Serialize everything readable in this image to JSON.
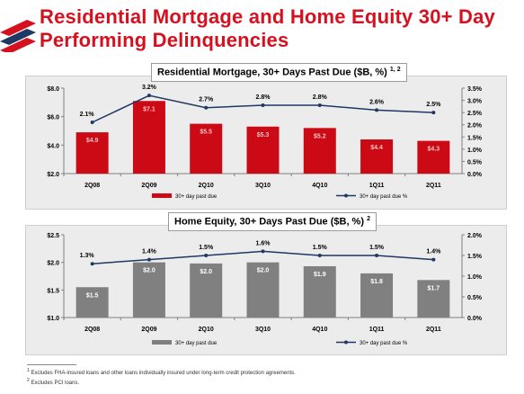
{
  "page": {
    "title": "Residential Mortgage and Home Equity 30+ Day Performing Delinquencies",
    "footnotes": [
      {
        "mark": "1",
        "text": "Excludes FHA-insured loans and other loans individually insured under long-term credit protection agreements."
      },
      {
        "mark": "2",
        "text": "Excludes PCI loans."
      }
    ],
    "colors": {
      "title": "#d6111f",
      "bar_top": "#cc0a16",
      "bar_bottom": "#8a9bb0",
      "line": "#1f3864"
    }
  },
  "chart_data": [
    {
      "type": "bar",
      "title": "Residential Mortgage, 30+ Days Past Due ($B, %)",
      "title_note": "1, 2",
      "categories": [
        "2Q08",
        "2Q09",
        "2Q10",
        "3Q10",
        "4Q10",
        "1Q11",
        "2Q11"
      ],
      "series": [
        {
          "name": "30+ day past due",
          "kind": "bar",
          "axis": "left",
          "color": "#cc0a16",
          "values": [
            4.9,
            7.1,
            5.5,
            5.3,
            5.2,
            4.4,
            4.3
          ],
          "labels": [
            "$4.9",
            "$7.1",
            "$5.5",
            "$5.3",
            "$5.2",
            "$4.4",
            "$4.3"
          ]
        },
        {
          "name": "30+ day past due %",
          "kind": "line",
          "axis": "right",
          "color": "#1f3864",
          "values": [
            2.1,
            3.2,
            2.7,
            2.8,
            2.8,
            2.6,
            2.5
          ],
          "labels": [
            "2.1%",
            "3.2%",
            "2.7%",
            "2.8%",
            "2.8%",
            "2.6%",
            "2.5%"
          ]
        }
      ],
      "ylim_left": [
        2.0,
        8.0
      ],
      "yticks_left": [
        "$2.0",
        "$4.0",
        "$6.0",
        "$8.0"
      ],
      "ylim_right": [
        0.0,
        3.5
      ],
      "yticks_right": [
        "0.0%",
        "0.5%",
        "1.0%",
        "1.5%",
        "2.0%",
        "2.5%",
        "3.0%",
        "3.5%"
      ],
      "legend_position": "bottom"
    },
    {
      "type": "bar",
      "title": "Home Equity, 30+ Days Past Due ($B, %)",
      "title_note": "2",
      "categories": [
        "2Q08",
        "2Q09",
        "2Q10",
        "3Q10",
        "4Q10",
        "1Q11",
        "2Q11"
      ],
      "series": [
        {
          "name": "30+ day past due",
          "kind": "bar",
          "axis": "left",
          "color": "#808080",
          "values": [
            1.55,
            2.0,
            1.98,
            2.0,
            1.93,
            1.8,
            1.68
          ],
          "labels": [
            "$1.5",
            "$2.0",
            "$2.0",
            "$2.0",
            "$1.9",
            "$1.8",
            "$1.7"
          ]
        },
        {
          "name": "30+ day past due %",
          "kind": "line",
          "axis": "right",
          "color": "#1f3864",
          "values": [
            1.3,
            1.4,
            1.5,
            1.6,
            1.5,
            1.5,
            1.4
          ],
          "labels": [
            "1.3%",
            "1.4%",
            "1.5%",
            "1.6%",
            "1.5%",
            "1.5%",
            "1.4%"
          ]
        }
      ],
      "ylim_left": [
        1.0,
        2.5
      ],
      "yticks_left": [
        "$1.0",
        "$1.5",
        "$2.0",
        "$2.5"
      ],
      "ylim_right": [
        0.0,
        2.0
      ],
      "yticks_right": [
        "0.0%",
        "0.5%",
        "1.0%",
        "1.5%",
        "2.0%"
      ],
      "legend_position": "bottom"
    }
  ]
}
